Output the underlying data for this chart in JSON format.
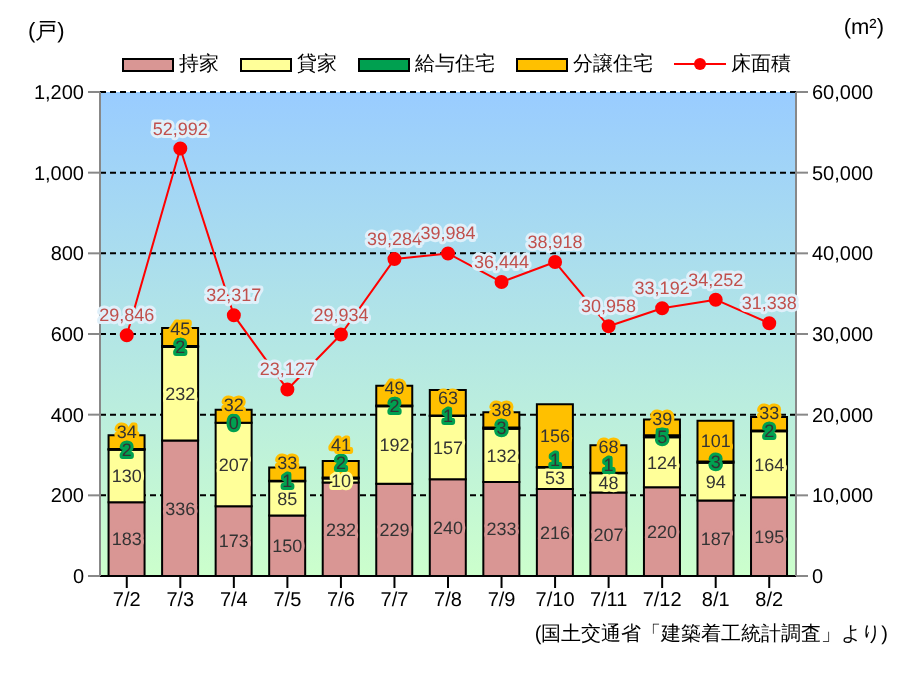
{
  "chart_data": {
    "type": "bar",
    "stacked": true,
    "ylabel": "(戸)",
    "y2label": "(m²)",
    "categories": [
      "7/2",
      "7/3",
      "7/4",
      "7/5",
      "7/6",
      "7/7",
      "7/8",
      "7/9",
      "7/10",
      "7/11",
      "7/12",
      "8/1",
      "8/2"
    ],
    "series": [
      {
        "name": "持家",
        "color": "#d99694",
        "values": [
          183,
          336,
          173,
          150,
          232,
          229,
          240,
          233,
          216,
          207,
          220,
          187,
          195
        ]
      },
      {
        "name": "貸家",
        "color": "#ffff99",
        "values": [
          130,
          232,
          207,
          85,
          10,
          192,
          157,
          132,
          53,
          48,
          124,
          94,
          164
        ]
      },
      {
        "name": "給与住宅",
        "color": "#00a050",
        "values": [
          2,
          2,
          0,
          1,
          2,
          2,
          1,
          3,
          1,
          1,
          5,
          3,
          2
        ]
      },
      {
        "name": "分譲住宅",
        "color": "#ffc000",
        "values": [
          34,
          45,
          32,
          33,
          41,
          49,
          63,
          38,
          156,
          68,
          39,
          101,
          33
        ]
      },
      {
        "name": "床面積",
        "type": "line",
        "axis": "y2",
        "color": "#ff0000",
        "marker": "circle",
        "values": [
          29846,
          52992,
          32317,
          23127,
          29934,
          39284,
          39984,
          36444,
          38918,
          30958,
          33192,
          34252,
          31338
        ],
        "value_labels": [
          "29,846",
          "52,992",
          "32,317",
          "23,127",
          "29,934",
          "39,284",
          "39,984",
          "36,444",
          "38,918",
          "30,958",
          "33,192",
          "34,252",
          "31,338"
        ]
      }
    ],
    "ylim": [
      0,
      1200
    ],
    "yticks": [
      0,
      {
        "value": 200,
        "label": "200"
      },
      {
        "value": 400,
        "label": "400"
      },
      {
        "value": 600,
        "label": "600"
      },
      {
        "value": 800,
        "label": "800"
      },
      {
        "value": 1000,
        "label": "1,000"
      },
      {
        "value": 1200,
        "label": "1,200"
      }
    ],
    "y2lim": [
      0,
      60000
    ],
    "y2ticks": [
      0,
      {
        "value": 10000,
        "label": "10,000"
      },
      {
        "value": 20000,
        "label": "20,000"
      },
      {
        "value": 30000,
        "label": "30,000"
      },
      {
        "value": 40000,
        "label": "40,000"
      },
      {
        "value": 50000,
        "label": "50,000"
      },
      {
        "value": 60000,
        "label": "60,000"
      }
    ],
    "grid": "y",
    "legend": "top",
    "data_labels": true,
    "annotations": [
      "(国土交通省「建築着工統計調査」より)"
    ]
  }
}
